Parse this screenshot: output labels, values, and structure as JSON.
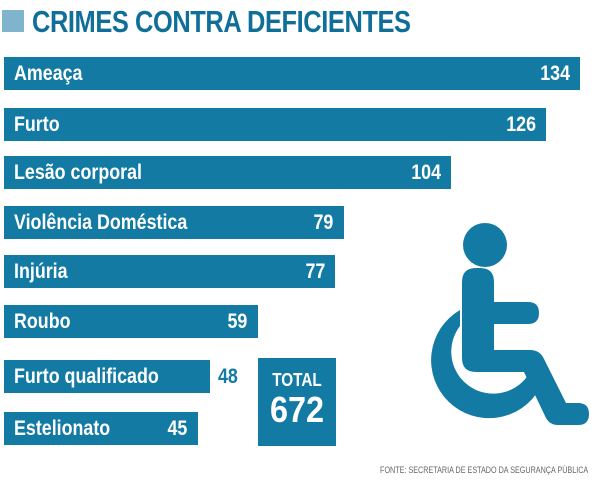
{
  "header": {
    "title": "CRIMES CONTRA DEFICIENTES"
  },
  "colors": {
    "bar": "#137aa4",
    "title": "#0f6f99",
    "title_square": "#7fb4cc",
    "label": "#ffffff"
  },
  "chart_data": {
    "type": "bar",
    "orientation": "horizontal",
    "title": "CRIMES CONTRA DEFICIENTES",
    "xlabel": "",
    "ylabel": "",
    "grid": false,
    "categories": [
      "Ameaça",
      "Furto",
      "Lesão corporal",
      "Violência Doméstica",
      "Injúria",
      "Roubo",
      "Furto qualificado",
      "Estelionato"
    ],
    "values": [
      134,
      126,
      104,
      79,
      77,
      59,
      48,
      45
    ],
    "value_inside_bar": [
      true,
      true,
      true,
      true,
      true,
      true,
      false,
      true
    ],
    "total_label": "TOTAL",
    "total_value": 672
  },
  "icon": "wheelchair-accessibility-icon",
  "footer": {
    "source": "FONTE: SECRETARIA DE ESTADO DA SEGURANÇA PÚBLICA"
  }
}
